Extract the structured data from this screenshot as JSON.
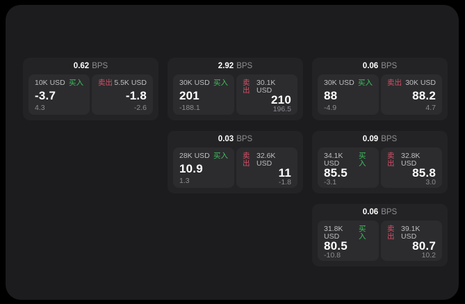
{
  "ui": {
    "bps_unit": "BPS",
    "buy_label": "买入",
    "sell_label": "卖出"
  },
  "colors": {
    "page_background": "#000000",
    "panel_background": "#1c1c1e",
    "card_background": "#232325",
    "tile_background": "#2c2c2e",
    "primary_text": "#ffffff",
    "muted_text": "#8e8e93",
    "label_text": "#bfbfc3",
    "buy_green": "#3fbf5f",
    "sell_red": "#d44f66"
  },
  "cards": [
    {
      "bps": "0.62",
      "buy": {
        "amount": "10K USD",
        "value": "-3.7",
        "change": "4.3"
      },
      "sell": {
        "amount": "5.5K USD",
        "value": "-1.8",
        "change": "-2.6"
      }
    },
    {
      "bps": "2.92",
      "buy": {
        "amount": "30K USD",
        "value": "201",
        "change": "-188.1"
      },
      "sell": {
        "amount": "30.1K USD",
        "value": "210",
        "change": "196.5"
      }
    },
    {
      "bps": "0.06",
      "buy": {
        "amount": "30K USD",
        "value": "88",
        "change": "-4.9"
      },
      "sell": {
        "amount": "30K USD",
        "value": "88.2",
        "change": "4.7"
      }
    },
    {
      "bps": "0.03",
      "buy": {
        "amount": "28K USD",
        "value": "10.9",
        "change": "1.3"
      },
      "sell": {
        "amount": "32.6K USD",
        "value": "11",
        "change": "-1.8"
      }
    },
    {
      "bps": "0.09",
      "buy": {
        "amount": "34.1K USD",
        "value": "85.5",
        "change": "-3.1"
      },
      "sell": {
        "amount": "32.8K USD",
        "value": "85.8",
        "change": "3.0"
      }
    },
    {
      "bps": "0.06",
      "buy": {
        "amount": "31.8K USD",
        "value": "80.5",
        "change": "-10.8"
      },
      "sell": {
        "amount": "39.1K USD",
        "value": "80.7",
        "change": "10.2"
      }
    }
  ]
}
